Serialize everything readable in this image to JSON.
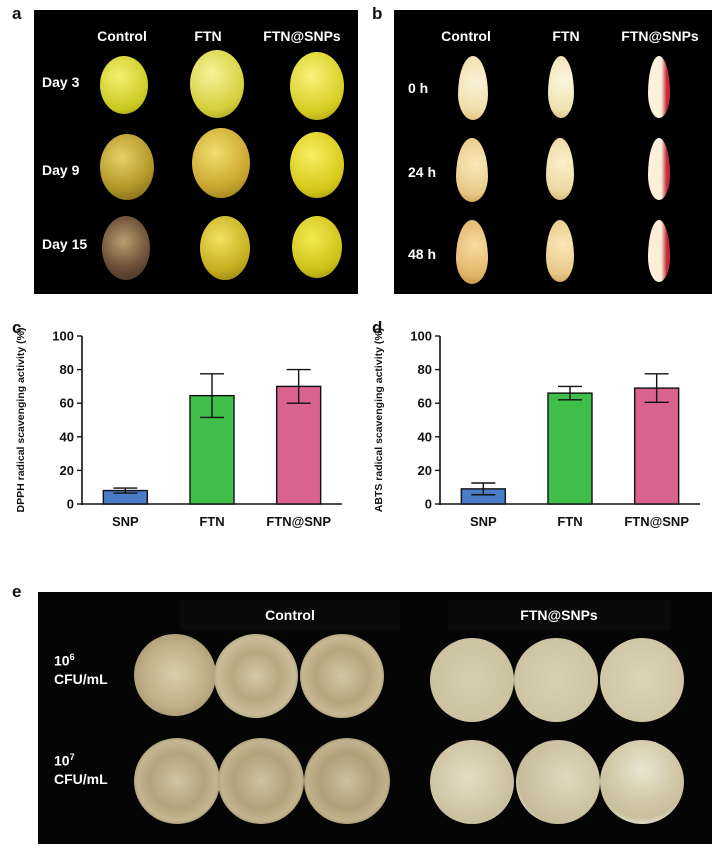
{
  "panels": {
    "a": {
      "letter": "a",
      "columns": [
        "Control",
        "FTN",
        "FTN@SNPs"
      ],
      "rows": [
        "Day 3",
        "Day 9",
        "Day 15"
      ]
    },
    "b": {
      "letter": "b",
      "columns": [
        "Control",
        "FTN",
        "FTN@SNPs"
      ],
      "rows": [
        "0 h",
        "24 h",
        "48 h"
      ]
    },
    "e": {
      "letter": "e",
      "group_left": "Control",
      "group_right": "FTN@SNPs",
      "row1": {
        "base": "10",
        "exp": "6",
        "unit": "CFU/mL"
      },
      "row2": {
        "base": "10",
        "exp": "7",
        "unit": "CFU/mL"
      }
    }
  },
  "chart_data": [
    {
      "letter": "c",
      "type": "bar",
      "categories": [
        "SNP",
        "FTN",
        "FTN@SNP"
      ],
      "values": [
        8,
        64.5,
        70
      ],
      "errors": [
        1.5,
        13,
        10
      ],
      "colors": [
        "#4a7cc7",
        "#3fbf4a",
        "#d9638e"
      ],
      "ylabel": "DPPH radical scavenging activity (%)",
      "ylim": [
        0,
        100
      ],
      "yticks": [
        "0",
        "20",
        "40",
        "60",
        "80",
        "100"
      ]
    },
    {
      "letter": "d",
      "type": "bar",
      "categories": [
        "SNP",
        "FTN",
        "FTN@SNP"
      ],
      "values": [
        9,
        66,
        69
      ],
      "errors": [
        3.5,
        4,
        8.5
      ],
      "colors": [
        "#4a7cc7",
        "#3fbf4a",
        "#d9638e"
      ],
      "ylabel": "ABTS radical scavenging activity (%)",
      "ylim": [
        0,
        100
      ],
      "yticks": [
        "0",
        "20",
        "40",
        "60",
        "80",
        "100"
      ]
    }
  ]
}
